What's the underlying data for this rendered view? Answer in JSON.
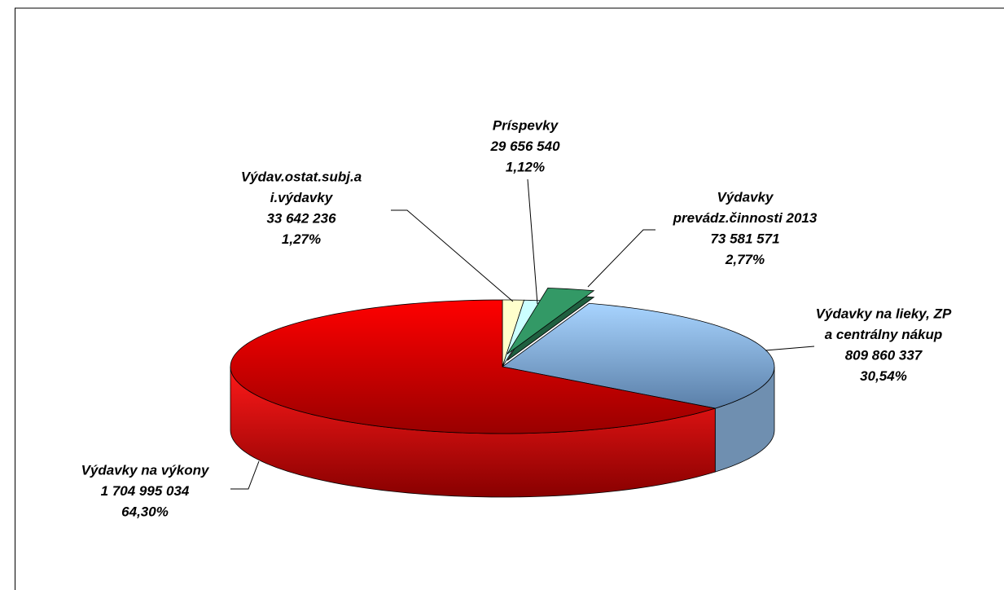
{
  "chart_data": {
    "type": "pie3d",
    "categories": [
      [
        "Výdav.ostat.subj.a",
        "i.výdavky"
      ],
      [
        "Príspevky"
      ],
      [
        "Výdavky",
        "prevádz.činnosti 2013"
      ],
      [
        "Výdavky na lieky, ZP",
        "a centrálny nákup"
      ],
      [
        "Výdavky  na výkony"
      ]
    ],
    "values": [
      33642236,
      29656540,
      73581571,
      809860337,
      1704995034
    ],
    "value_labels": [
      "33 642 236",
      "29 656 540",
      "73 581 571",
      "809 860 337",
      "1 704 995 034"
    ],
    "percents": [
      1.27,
      1.12,
      2.77,
      30.54,
      64.3
    ],
    "percent_labels": [
      "1,27%",
      "1,12%",
      "2,77%",
      "30,54%",
      "64,30%"
    ],
    "colors": [
      "#ffffcc",
      "#ccffff",
      "#339966",
      "#99ccff",
      "#ff0000"
    ],
    "exploded": [
      false,
      false,
      true,
      false,
      false
    ]
  }
}
